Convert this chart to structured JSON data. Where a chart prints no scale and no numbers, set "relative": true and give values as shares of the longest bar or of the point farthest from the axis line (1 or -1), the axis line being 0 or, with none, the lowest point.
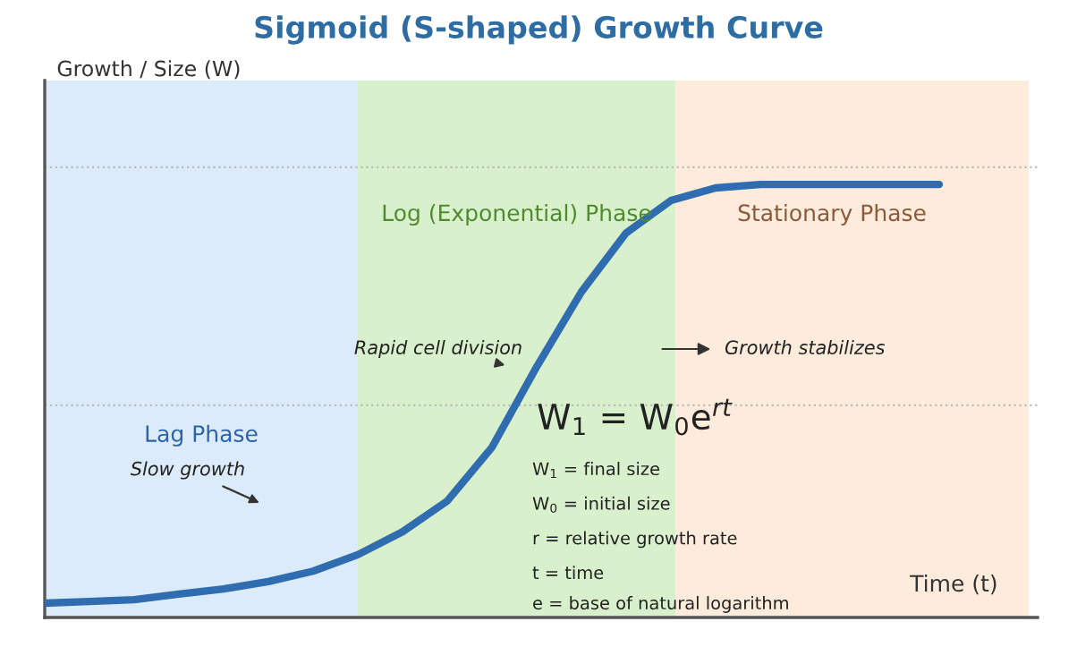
{
  "chart_data": {
    "type": "line",
    "title": "Sigmoid (S-shaped) Growth Curve",
    "xlabel": "Time (t)",
    "ylabel": "Growth / Size (W)",
    "relative": true,
    "categories": [
      null,
      null,
      null,
      null,
      null,
      null,
      null,
      null,
      null,
      null,
      null,
      null,
      null,
      null,
      null,
      null,
      null,
      null,
      null,
      null,
      null
    ],
    "series": [
      {
        "color": "#2f6db0",
        "values": [
          0.033,
          0.037,
          0.041,
          0.054,
          0.066,
          0.083,
          0.107,
          0.145,
          0.198,
          0.269,
          0.393,
          0.579,
          0.752,
          0.888,
          0.963,
          0.992,
          1.0,
          1.0,
          1.0,
          1.0,
          1.0
        ]
      }
    ],
    "ref_lines": [
      {
        "axis": "y",
        "value": 0.49,
        "color": "#bbbbbb",
        "line_style": "dotted"
      },
      {
        "axis": "y",
        "value": 1.04,
        "color": "#bbbbbb",
        "line_style": "dotted"
      }
    ],
    "annotations": [
      "Slow growth",
      "Rapid cell division",
      "Growth stabilizes",
      "W$_{1}$ = W$_{0}$e$^{rt}$",
      "W$_{1}$ = final size",
      "W$_{0}$ = initial size",
      "r = relative growth rate",
      "t = time",
      "e = base of natural logarithm",
      "Lag Phase",
      "Log (Exponential) Phase",
      "Stationary Phase"
    ],
    "line_style": "solid",
    "marker": "none"
  }
}
